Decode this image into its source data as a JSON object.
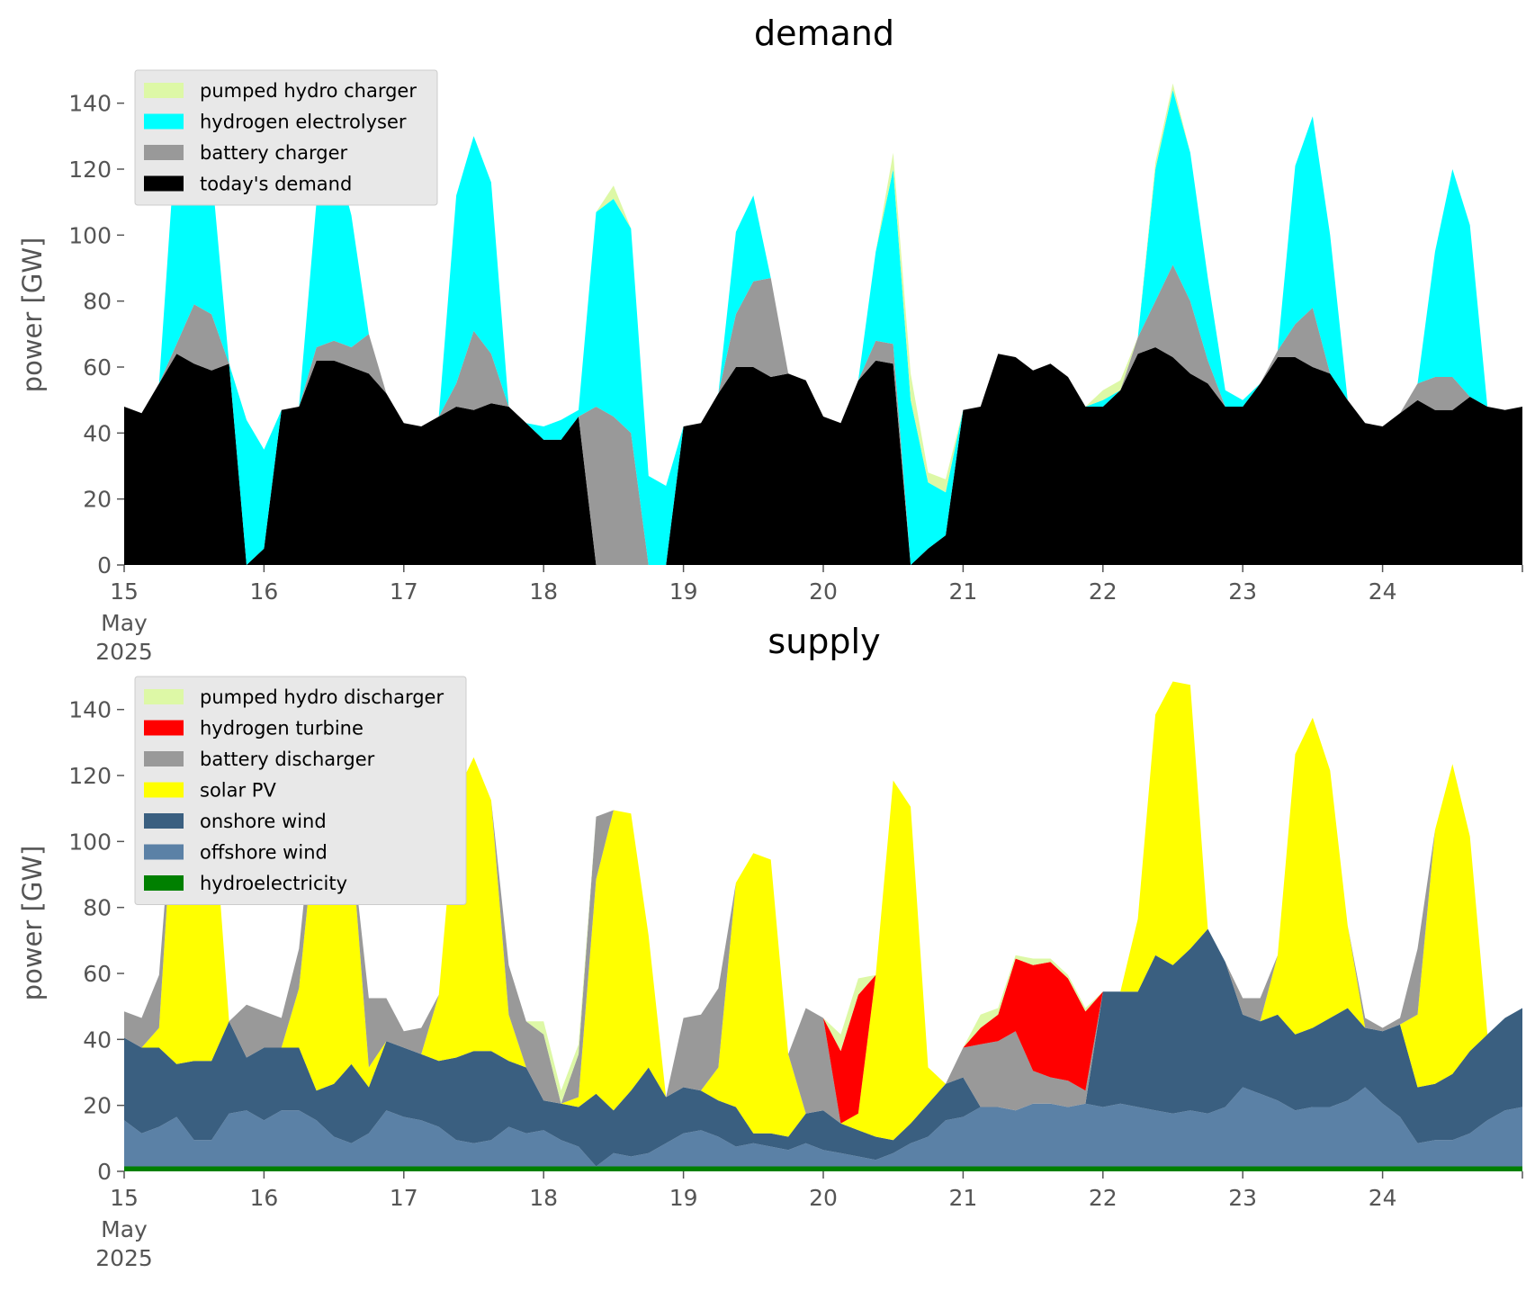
{
  "chart_data": [
    {
      "type": "area",
      "title": "demand",
      "xlabel": "",
      "ylabel": "power [GW]",
      "ylim": [
        0,
        150
      ],
      "yticks": [
        "0",
        "20",
        "40",
        "60",
        "80",
        "100",
        "120",
        "140"
      ],
      "xticks": [
        "15",
        "16",
        "17",
        "18",
        "19",
        "20",
        "21",
        "22",
        "23",
        "24"
      ],
      "x_first_extra": [
        "May",
        "2025"
      ],
      "x": [
        15.0,
        15.125,
        15.25,
        15.375,
        15.5,
        15.625,
        15.75,
        15.875,
        16.0,
        16.125,
        16.25,
        16.375,
        16.5,
        16.625,
        16.75,
        16.875,
        17.0,
        17.125,
        17.25,
        17.375,
        17.5,
        17.625,
        17.75,
        17.875,
        18.0,
        18.125,
        18.25,
        18.375,
        18.5,
        18.625,
        18.75,
        18.875,
        19.0,
        19.125,
        19.25,
        19.375,
        19.5,
        19.625,
        19.75,
        19.875,
        20.0,
        20.125,
        20.25,
        20.375,
        20.5,
        20.625,
        20.75,
        20.875,
        21.0,
        21.125,
        21.25,
        21.375,
        21.5,
        21.625,
        21.75,
        21.875,
        22.0,
        22.125,
        22.25,
        22.375,
        22.5,
        22.625,
        22.75,
        22.875,
        23.0,
        23.125,
        23.25,
        23.375,
        23.5,
        23.625,
        23.75,
        23.875,
        24.0,
        24.125,
        24.25,
        24.375,
        24.5,
        24.625,
        24.75,
        24.875,
        25.0
      ],
      "legend_position": "top-left",
      "series": [
        {
          "name": "today's demand",
          "color": "#000000",
          "values": [
            48,
            46,
            55,
            64,
            61,
            59,
            61,
            0,
            5,
            47,
            48,
            62,
            62,
            60,
            58,
            52,
            43,
            42,
            45,
            48,
            47,
            49,
            48,
            43,
            38,
            38,
            45,
            0,
            0,
            0,
            0,
            0,
            42,
            43,
            52,
            60,
            60,
            57,
            58,
            56,
            45,
            43,
            56,
            62,
            61,
            0,
            5,
            9,
            47,
            48,
            64,
            63,
            59,
            61,
            57,
            48,
            48,
            53,
            64,
            66,
            63,
            58,
            55,
            48,
            48,
            55,
            63,
            63,
            60,
            58,
            50,
            43,
            42,
            46,
            50,
            47,
            47,
            51,
            48,
            47,
            48
          ]
        },
        {
          "name": "battery charger",
          "color": "#999999",
          "values": [
            0,
            0,
            0,
            3,
            18,
            17,
            0,
            0,
            0,
            0,
            0,
            4,
            6,
            6,
            12,
            0,
            0,
            0,
            0,
            7,
            24,
            15,
            0,
            0,
            0,
            0,
            0,
            48,
            45,
            40,
            0,
            0,
            0,
            0,
            0,
            16,
            26,
            30,
            0,
            0,
            0,
            0,
            0,
            6,
            6,
            0,
            0,
            0,
            0,
            0,
            0,
            0,
            0,
            0,
            0,
            0,
            0,
            0,
            5,
            14,
            28,
            22,
            7,
            0,
            0,
            0,
            2,
            10,
            18,
            0,
            0,
            0,
            0,
            0,
            5,
            10,
            10,
            0,
            0,
            0,
            0
          ]
        },
        {
          "name": "hydrogen electrolyser",
          "color": "#00ffff",
          "values": [
            0,
            0,
            0,
            66,
            64,
            44,
            0,
            44,
            30,
            0,
            0,
            44,
            58,
            40,
            0,
            0,
            0,
            0,
            0,
            57,
            59,
            52,
            0,
            0,
            4,
            6,
            2,
            59,
            66,
            62,
            27,
            24,
            0,
            0,
            0,
            25,
            26,
            0,
            0,
            0,
            0,
            0,
            0,
            27,
            53,
            50,
            20,
            13,
            0,
            0,
            0,
            0,
            0,
            0,
            0,
            0,
            2,
            0,
            0,
            40,
            53,
            45,
            25,
            5,
            2,
            0,
            0,
            48,
            58,
            42,
            0,
            0,
            0,
            0,
            0,
            38,
            63,
            52,
            0,
            0,
            0
          ]
        },
        {
          "name": "pumped hydro charger",
          "color": "#ddf8a6",
          "values": [
            0,
            0,
            0,
            0,
            0,
            0,
            0,
            0,
            0,
            0,
            0,
            0,
            0,
            0,
            0,
            0,
            0,
            0,
            0,
            0,
            0,
            0,
            0,
            0,
            0,
            0,
            0,
            0,
            4,
            0,
            0,
            0,
            0,
            0,
            0,
            0,
            0,
            0,
            0,
            0,
            0,
            0,
            0,
            0,
            5,
            8,
            3,
            4,
            0,
            0,
            0,
            0,
            0,
            0,
            0,
            0,
            3,
            3,
            0,
            2,
            2,
            0,
            0,
            0,
            0,
            0,
            0,
            0,
            0,
            0,
            0,
            0,
            0,
            0,
            0,
            0,
            0,
            0,
            0,
            0,
            0
          ]
        }
      ]
    },
    {
      "type": "area",
      "title": "supply",
      "xlabel": "",
      "ylabel": "power [GW]",
      "ylim": [
        0,
        150
      ],
      "yticks": [
        "0",
        "20",
        "40",
        "60",
        "80",
        "100",
        "120",
        "140"
      ],
      "xticks": [
        "15",
        "16",
        "17",
        "18",
        "19",
        "20",
        "21",
        "22",
        "23",
        "24"
      ],
      "x_first_extra": [
        "May",
        "2025"
      ],
      "x": [
        15.0,
        15.125,
        15.25,
        15.375,
        15.5,
        15.625,
        15.75,
        15.875,
        16.0,
        16.125,
        16.25,
        16.375,
        16.5,
        16.625,
        16.75,
        16.875,
        17.0,
        17.125,
        17.25,
        17.375,
        17.5,
        17.625,
        17.75,
        17.875,
        18.0,
        18.125,
        18.25,
        18.375,
        18.5,
        18.625,
        18.75,
        18.875,
        19.0,
        19.125,
        19.25,
        19.375,
        19.5,
        19.625,
        19.75,
        19.875,
        20.0,
        20.125,
        20.25,
        20.375,
        20.5,
        20.625,
        20.75,
        20.875,
        21.0,
        21.125,
        21.25,
        21.375,
        21.5,
        21.625,
        21.75,
        21.875,
        22.0,
        22.125,
        22.25,
        22.375,
        22.5,
        22.625,
        22.75,
        22.875,
        23.0,
        23.125,
        23.25,
        23.375,
        23.5,
        23.625,
        23.75,
        23.875,
        24.0,
        24.125,
        24.25,
        24.375,
        24.5,
        24.625,
        24.75,
        24.875,
        25.0
      ],
      "legend_position": "top-left",
      "series": [
        {
          "name": "hydroelectricity",
          "color": "#008000",
          "values": [
            1.5,
            1.5,
            1.5,
            1.5,
            1.5,
            1.5,
            1.5,
            1.5,
            1.5,
            1.5,
            1.5,
            1.5,
            1.5,
            1.5,
            1.5,
            1.5,
            1.5,
            1.5,
            1.5,
            1.5,
            1.5,
            1.5,
            1.5,
            1.5,
            1.5,
            1.5,
            1.5,
            1.5,
            1.5,
            1.5,
            1.5,
            1.5,
            1.5,
            1.5,
            1.5,
            1.5,
            1.5,
            1.5,
            1.5,
            1.5,
            1.5,
            1.5,
            1.5,
            1.5,
            1.5,
            1.5,
            1.5,
            1.5,
            1.5,
            1.5,
            1.5,
            1.5,
            1.5,
            1.5,
            1.5,
            1.5,
            1.5,
            1.5,
            1.5,
            1.5,
            1.5,
            1.5,
            1.5,
            1.5,
            1.5,
            1.5,
            1.5,
            1.5,
            1.5,
            1.5,
            1.5,
            1.5,
            1.5,
            1.5,
            1.5,
            1.5,
            1.5,
            1.5,
            1.5,
            1.5,
            1.5
          ]
        },
        {
          "name": "offshore wind",
          "color": "#5b81a6",
          "values": [
            14,
            10,
            12,
            15,
            8,
            8,
            16,
            17,
            14,
            17,
            17,
            14,
            9,
            7,
            10,
            17,
            15,
            14,
            12,
            8,
            7,
            8,
            12,
            10,
            11,
            8,
            6,
            0,
            4,
            3,
            4,
            7,
            10,
            11,
            9,
            6,
            7,
            6,
            5,
            7,
            5,
            4,
            3,
            2,
            4,
            7,
            9,
            14,
            15,
            18,
            18,
            17,
            19,
            19,
            18,
            19,
            18,
            19,
            18,
            17,
            16,
            17,
            16,
            18,
            24,
            22,
            20,
            17,
            18,
            18,
            20,
            24,
            19,
            15,
            7,
            8,
            8,
            10,
            14,
            17,
            18
          ]
        },
        {
          "name": "onshore wind",
          "color": "#3a5f80",
          "values": [
            25,
            26,
            24,
            16,
            24,
            24,
            28,
            16,
            22,
            19,
            19,
            9,
            16,
            24,
            14,
            21,
            21,
            20,
            20,
            25,
            28,
            27,
            20,
            20,
            9,
            11,
            12,
            22,
            13,
            20,
            26,
            14,
            14,
            12,
            11,
            12,
            3,
            4,
            4,
            9,
            12,
            9,
            8,
            7,
            4,
            6,
            10,
            11,
            12,
            0,
            0,
            0,
            0,
            0,
            0,
            0,
            35,
            34,
            35,
            47,
            45,
            49,
            56,
            44,
            22,
            22,
            26,
            23,
            24,
            27,
            28,
            18,
            22,
            28,
            17,
            17,
            20,
            25,
            26,
            28,
            30
          ]
        },
        {
          "name": "solar PV",
          "color": "#ffff00",
          "values": [
            0,
            0,
            6,
            95,
            100,
            85,
            0,
            0,
            0,
            0,
            18,
            83,
            95,
            68,
            6,
            0,
            0,
            0,
            20,
            80,
            89,
            76,
            14,
            0,
            0,
            0,
            3,
            65,
            91,
            84,
            40,
            0,
            0,
            0,
            10,
            68,
            85,
            83,
            25,
            0,
            0,
            0,
            5,
            49,
            109,
            96,
            11,
            0,
            0,
            0,
            0,
            0,
            0,
            0,
            0,
            0,
            0,
            0,
            22,
            73,
            86,
            80,
            0,
            0,
            0,
            0,
            18,
            85,
            94,
            75,
            25,
            0,
            0,
            0,
            22,
            77,
            94,
            65,
            0,
            0,
            0
          ]
        },
        {
          "name": "battery discharger",
          "color": "#999999",
          "values": [
            8,
            9,
            16,
            0,
            0,
            0,
            0,
            16,
            11,
            9,
            12,
            11,
            0,
            0,
            21,
            13,
            5,
            8,
            0,
            0,
            0,
            0,
            15,
            14,
            20,
            0,
            13,
            19,
            0,
            0,
            0,
            0,
            21,
            23,
            24,
            0,
            0,
            0,
            0,
            32,
            28,
            0,
            0,
            0,
            0,
            0,
            0,
            0,
            9,
            19,
            20,
            24,
            10,
            8,
            8,
            4,
            0,
            0,
            0,
            0,
            0,
            0,
            0,
            0,
            5,
            7,
            0,
            0,
            0,
            0,
            0,
            3,
            1,
            2,
            20,
            0,
            0,
            0,
            0,
            0,
            0
          ]
        },
        {
          "name": "hydrogen turbine",
          "color": "#ff0000",
          "values": [
            0,
            0,
            0,
            0,
            0,
            0,
            0,
            0,
            0,
            0,
            0,
            0,
            0,
            0,
            0,
            0,
            0,
            0,
            0,
            0,
            0,
            0,
            0,
            0,
            0,
            0,
            0,
            0,
            0,
            0,
            0,
            0,
            0,
            0,
            0,
            0,
            0,
            0,
            0,
            0,
            0,
            22,
            36,
            0,
            0,
            0,
            0,
            0,
            0,
            5,
            8,
            22,
            32,
            35,
            31,
            24,
            0,
            0,
            0,
            0,
            0,
            0,
            0,
            0,
            0,
            0,
            0,
            0,
            0,
            0,
            0,
            0,
            0,
            0,
            0,
            0,
            0,
            0,
            0,
            0,
            0
          ]
        },
        {
          "name": "pumped hydro discharger",
          "color": "#ddf8a6",
          "values": [
            0,
            0,
            0,
            0,
            0,
            0,
            0,
            0,
            0,
            0,
            0,
            0,
            0,
            0,
            0,
            0,
            0,
            0,
            0,
            0,
            0,
            0,
            0,
            0,
            4,
            4,
            3,
            0,
            0,
            0,
            0,
            0,
            0,
            0,
            0,
            0,
            0,
            0,
            0,
            0,
            0,
            5,
            5,
            0,
            0,
            0,
            0,
            0,
            0,
            4,
            2,
            1,
            2,
            1,
            1,
            1,
            0,
            0,
            0,
            0,
            0,
            0,
            0,
            0,
            0,
            0,
            0,
            0,
            0,
            0,
            0,
            0,
            0,
            0,
            0,
            0,
            0,
            0,
            0,
            0,
            0
          ]
        }
      ]
    }
  ]
}
